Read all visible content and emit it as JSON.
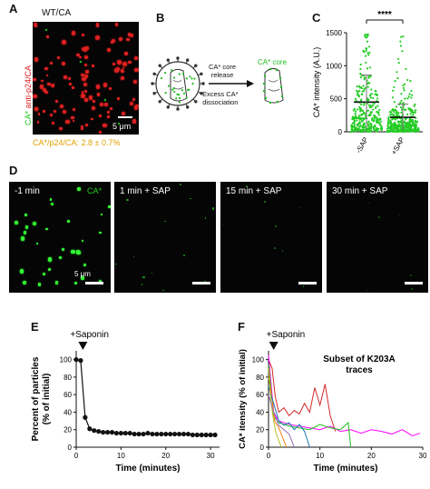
{
  "panels": {
    "A": {
      "label": "A",
      "title": "WT/CA",
      "side_label_green": "CA*",
      "side_label_red": "anti-p24/CA",
      "scale": "5 μm",
      "caption": "CA*/p24/CA: 2.8 ± 0.7%"
    },
    "B": {
      "label": "B",
      "core_label": "CA* core",
      "arrow_top": [
        "CA* core",
        "release"
      ],
      "arrow_bottom": [
        "Excess CA*",
        "dissociation"
      ]
    },
    "C": {
      "label": "C"
    },
    "D": {
      "label": "D",
      "scale": "5 μm",
      "channel": "CA*",
      "frames": [
        "-1 min",
        "1 min + SAP",
        "15 min + SAP",
        "30 min + SAP"
      ]
    },
    "E": {
      "label": "E",
      "annotation": "+Saponin"
    },
    "F": {
      "label": "F",
      "annotation": "+Saponin",
      "inset_title": [
        "Subset of K203A",
        "traces"
      ]
    }
  },
  "colors": {
    "green": "#22cc22",
    "red": "#e02020",
    "caption": "#e0a000",
    "black": "#111111"
  },
  "chart_data": [
    {
      "id": "C",
      "type": "scatter",
      "ylabel": "CA* intensity (A.U.)",
      "categories": [
        "-SAP",
        "+SAP"
      ],
      "ylim": [
        0,
        1500
      ],
      "yticks": [
        0,
        500,
        1000,
        1500
      ],
      "means": [
        450,
        220
      ],
      "sd": [
        410,
        200
      ],
      "significance": "****"
    },
    {
      "id": "E",
      "type": "line",
      "xlabel": "Time (minutes)",
      "ylabel": [
        "Percent of particles",
        "(% of initial)"
      ],
      "xlim": [
        0,
        32
      ],
      "ylim": [
        0,
        110
      ],
      "xticks": [
        0,
        10,
        20,
        30
      ],
      "yticks": [
        0,
        20,
        40,
        60,
        80,
        100
      ],
      "x": [
        0,
        1,
        2,
        3,
        4,
        5,
        6,
        7,
        8,
        9,
        10,
        11,
        12,
        13,
        14,
        15,
        16,
        17,
        18,
        19,
        20,
        21,
        22,
        23,
        24,
        25,
        26,
        27,
        28,
        29,
        30,
        31
      ],
      "y": [
        100,
        99,
        34,
        21,
        19,
        18,
        17,
        17,
        17,
        16,
        16,
        16,
        16,
        15,
        15,
        15,
        16,
        15,
        15,
        15,
        15,
        15,
        15,
        15,
        15,
        15,
        14,
        14,
        14,
        14,
        14,
        14
      ],
      "err": [
        0,
        2,
        3,
        1,
        1,
        1,
        1,
        1,
        1,
        1,
        1,
        1,
        1,
        1,
        1,
        1,
        1,
        1,
        1,
        1,
        1,
        1,
        1,
        1,
        1,
        1,
        1,
        1,
        1,
        1,
        1,
        1
      ],
      "saponin_x": 1.5
    },
    {
      "id": "F",
      "type": "line",
      "xlabel": "Time (minutes)",
      "ylabel": [
        "CA* itensity (% of initial)"
      ],
      "xlim": [
        0,
        30
      ],
      "ylim": [
        0,
        110
      ],
      "xticks": [
        0,
        10,
        20,
        30
      ],
      "yticks": [
        0,
        20,
        40,
        60,
        80,
        100
      ],
      "saponin_x": 1,
      "series": [
        {
          "color": "#d62728",
          "x": [
            0,
            0.7,
            1.3,
            2,
            3,
            4,
            5,
            6,
            7,
            8,
            9,
            10,
            11,
            12,
            13
          ],
          "y": [
            100,
            90,
            58,
            40,
            45,
            36,
            42,
            38,
            50,
            40,
            68,
            48,
            72,
            36,
            18
          ]
        },
        {
          "color": "#ff00ff",
          "x": [
            0,
            1,
            2,
            4,
            6,
            8,
            10,
            12,
            14,
            16,
            18,
            20,
            22,
            24,
            26,
            28,
            29.5
          ],
          "y": [
            105,
            40,
            30,
            26,
            24,
            22,
            20,
            24,
            18,
            20,
            16,
            20,
            18,
            15,
            20,
            13,
            16
          ]
        },
        {
          "color": "#22bb22",
          "x": [
            0,
            1,
            2,
            4,
            6,
            8,
            10,
            12,
            14,
            15.5,
            16
          ],
          "y": [
            95,
            35,
            28,
            24,
            22,
            20,
            26,
            22,
            20,
            28,
            0
          ]
        },
        {
          "color": "#ff7f0e",
          "x": [
            0,
            0.6,
            1.2,
            2,
            3.5
          ],
          "y": [
            80,
            60,
            30,
            22,
            0
          ]
        },
        {
          "color": "#1f77b4",
          "x": [
            0,
            1,
            2,
            3,
            4,
            5,
            6,
            7,
            8
          ],
          "y": [
            70,
            50,
            30,
            25,
            28,
            20,
            26,
            18,
            0
          ]
        },
        {
          "color": "#bcbd22",
          "x": [
            0,
            0.5,
            1,
            1.5,
            2.5
          ],
          "y": [
            90,
            50,
            30,
            15,
            0
          ]
        },
        {
          "color": "#9467bd",
          "x": [
            0,
            1,
            2,
            3,
            4,
            5
          ],
          "y": [
            60,
            40,
            25,
            20,
            15,
            0
          ]
        }
      ]
    }
  ]
}
